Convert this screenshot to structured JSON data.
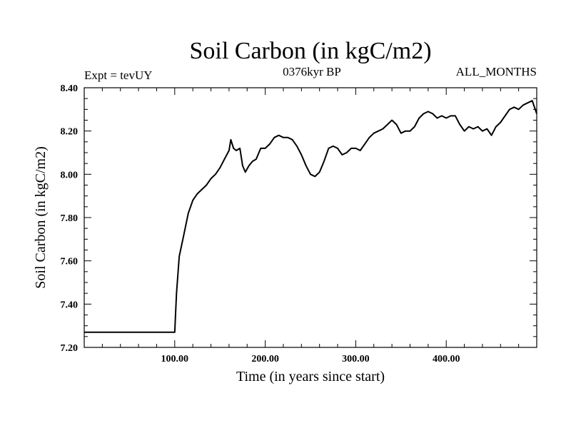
{
  "chart_data": {
    "type": "line",
    "title": "Soil Carbon (in kgC/m2)",
    "subtitle_center": "0376kyr BP",
    "subtitle_left": "Expt = tevUY",
    "subtitle_right": "ALL_MONTHS",
    "xlabel": "Time (in years since start)",
    "ylabel": "Soil Carbon (in kgC/m2)",
    "xlim": [
      0,
      500
    ],
    "ylim": [
      7.2,
      8.4
    ],
    "x_ticks": [
      {
        "value": 100,
        "label": "100.00"
      },
      {
        "value": 200,
        "label": "200.00"
      },
      {
        "value": 300,
        "label": "300.00"
      },
      {
        "value": 400,
        "label": "400.00"
      }
    ],
    "y_ticks": [
      {
        "value": 7.2,
        "label": "7.20"
      },
      {
        "value": 7.4,
        "label": "7.40"
      },
      {
        "value": 7.6,
        "label": "7.60"
      },
      {
        "value": 7.8,
        "label": "7.80"
      },
      {
        "value": 8.0,
        "label": "8.00"
      },
      {
        "value": 8.2,
        "label": "8.20"
      },
      {
        "value": 8.4,
        "label": "8.40"
      }
    ],
    "grid": false,
    "line_color": "#000000",
    "series": [
      {
        "x": [
          0,
          100,
          102,
          105,
          110,
          115,
          120,
          125,
          130,
          135,
          140,
          145,
          150,
          155,
          160,
          162,
          165,
          168,
          172,
          175,
          178,
          182,
          186,
          190,
          195,
          200,
          205,
          210,
          215,
          220,
          225,
          230,
          235,
          240,
          245,
          250,
          255,
          260,
          265,
          270,
          275,
          280,
          285,
          290,
          295,
          300,
          305,
          310,
          315,
          320,
          325,
          330,
          335,
          340,
          345,
          350,
          355,
          360,
          365,
          370,
          375,
          380,
          385,
          390,
          395,
          400,
          405,
          410,
          415,
          420,
          425,
          430,
          435,
          440,
          445,
          450,
          455,
          460,
          465,
          470,
          475,
          480,
          485,
          490,
          495,
          500
        ],
        "y": [
          7.27,
          7.27,
          7.45,
          7.62,
          7.72,
          7.82,
          7.88,
          7.91,
          7.93,
          7.95,
          7.98,
          8.0,
          8.03,
          8.07,
          8.11,
          8.16,
          8.12,
          8.11,
          8.12,
          8.04,
          8.01,
          8.04,
          8.06,
          8.07,
          8.12,
          8.12,
          8.14,
          8.17,
          8.18,
          8.17,
          8.17,
          8.16,
          8.13,
          8.09,
          8.04,
          8.0,
          7.99,
          8.01,
          8.06,
          8.12,
          8.13,
          8.12,
          8.09,
          8.1,
          8.12,
          8.12,
          8.11,
          8.14,
          8.17,
          8.19,
          8.2,
          8.21,
          8.23,
          8.25,
          8.23,
          8.19,
          8.2,
          8.2,
          8.22,
          8.26,
          8.28,
          8.29,
          8.28,
          8.26,
          8.27,
          8.26,
          8.27,
          8.27,
          8.23,
          8.2,
          8.22,
          8.21,
          8.22,
          8.2,
          8.21,
          8.18,
          8.22,
          8.24,
          8.27,
          8.3,
          8.31,
          8.3,
          8.32,
          8.33,
          8.34,
          8.28
        ]
      }
    ]
  }
}
